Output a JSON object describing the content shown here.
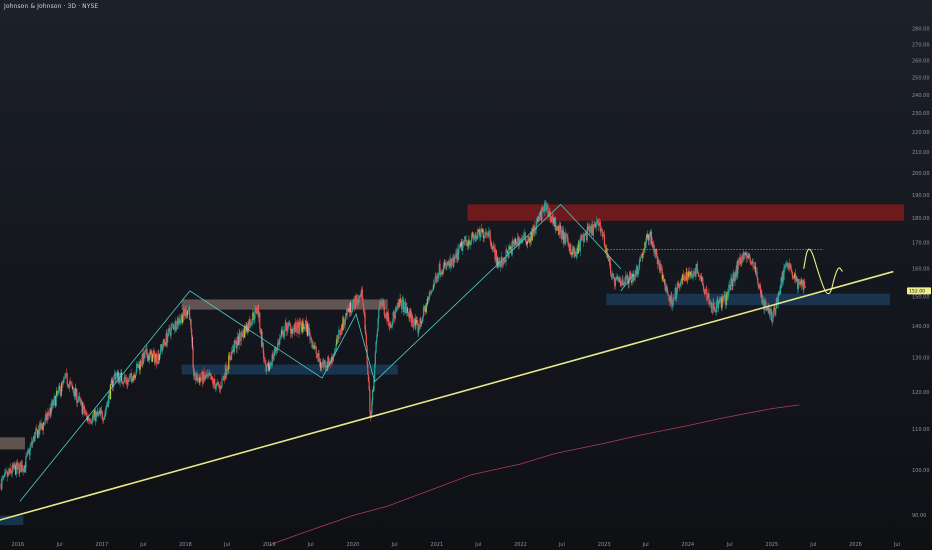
{
  "title": "Johnson & Johnson · 3D · NYSE",
  "chart_data": {
    "type": "candlestick",
    "symbol": "Johnson & Johnson",
    "interval": "3D",
    "exchange": "NYSE",
    "scale": "log",
    "ylim": [
      85,
      290
    ],
    "xlim": [
      "2015-10-15",
      "2026-08-05"
    ],
    "price_ticks": [
      90,
      100,
      110,
      120,
      130,
      140,
      150,
      160,
      170,
      180,
      190,
      200,
      210,
      220,
      230,
      240,
      250,
      260,
      270,
      280
    ],
    "time_ticks": [
      {
        "t": "2016-01-01",
        "label": "2016"
      },
      {
        "t": "2016-07-01",
        "label": "Jul"
      },
      {
        "t": "2017-01-01",
        "label": "2017"
      },
      {
        "t": "2017-07-01",
        "label": "Jul"
      },
      {
        "t": "2018-01-01",
        "label": "2018"
      },
      {
        "t": "2018-07-01",
        "label": "Jul"
      },
      {
        "t": "2019-01-01",
        "label": "2019"
      },
      {
        "t": "2019-07-01",
        "label": "Jul"
      },
      {
        "t": "2020-01-01",
        "label": "2020"
      },
      {
        "t": "2020-07-01",
        "label": "Jul"
      },
      {
        "t": "2021-01-01",
        "label": "2021"
      },
      {
        "t": "2021-07-01",
        "label": "Jul"
      },
      {
        "t": "2022-01-01",
        "label": "2022"
      },
      {
        "t": "2022-07-01",
        "label": "Jul"
      },
      {
        "t": "2023-01-01",
        "label": "2023"
      },
      {
        "t": "2023-07-01",
        "label": "Jul"
      },
      {
        "t": "2024-01-01",
        "label": "2024"
      },
      {
        "t": "2024-07-01",
        "label": "Jul"
      },
      {
        "t": "2025-01-01",
        "label": "2025"
      },
      {
        "t": "2025-07-01",
        "label": "Jul"
      },
      {
        "t": "2026-01-01",
        "label": "2026"
      },
      {
        "t": "2026-07-01",
        "label": "Jul"
      }
    ],
    "price_path": [
      [
        "2015-10-20",
        97
      ],
      [
        "2015-12-10",
        100
      ],
      [
        "2016-02-01",
        101
      ],
      [
        "2016-03-15",
        108
      ],
      [
        "2016-05-01",
        112
      ],
      [
        "2016-08-01",
        124
      ],
      [
        "2016-09-15",
        119
      ],
      [
        "2016-11-01",
        113
      ],
      [
        "2017-01-15",
        114
      ],
      [
        "2017-03-01",
        125
      ],
      [
        "2017-05-01",
        123
      ],
      [
        "2017-07-15",
        131
      ],
      [
        "2017-09-01",
        130
      ],
      [
        "2017-11-01",
        139
      ],
      [
        "2018-01-20",
        146
      ],
      [
        "2018-02-10",
        124
      ],
      [
        "2018-04-15",
        124
      ],
      [
        "2018-06-01",
        121
      ],
      [
        "2018-08-01",
        133
      ],
      [
        "2018-10-01",
        140
      ],
      [
        "2018-11-15",
        146
      ],
      [
        "2018-12-20",
        125
      ],
      [
        "2019-02-15",
        135
      ],
      [
        "2019-03-20",
        140
      ],
      [
        "2019-04-20",
        139
      ],
      [
        "2019-06-15",
        140
      ],
      [
        "2019-08-15",
        128
      ],
      [
        "2019-10-01",
        129
      ],
      [
        "2019-12-10",
        145
      ],
      [
        "2020-02-15",
        151
      ],
      [
        "2020-03-22",
        112
      ],
      [
        "2020-05-01",
        149
      ],
      [
        "2020-06-15",
        141
      ],
      [
        "2020-08-01",
        148
      ],
      [
        "2020-10-15",
        139
      ],
      [
        "2021-01-15",
        160
      ],
      [
        "2021-03-15",
        162
      ],
      [
        "2021-05-01",
        170
      ],
      [
        "2021-08-15",
        175
      ],
      [
        "2021-10-01",
        161
      ],
      [
        "2021-12-20",
        171
      ],
      [
        "2022-02-15",
        172
      ],
      [
        "2022-04-20",
        185
      ],
      [
        "2022-06-15",
        176
      ],
      [
        "2022-09-01",
        165
      ],
      [
        "2022-10-01",
        172
      ],
      [
        "2022-12-15",
        178
      ],
      [
        "2023-02-15",
        155
      ],
      [
        "2023-04-10",
        156
      ],
      [
        "2023-05-20",
        158
      ],
      [
        "2023-07-20",
        174
      ],
      [
        "2023-09-01",
        161
      ],
      [
        "2023-10-20",
        148
      ],
      [
        "2023-12-20",
        157
      ],
      [
        "2024-02-15",
        160
      ],
      [
        "2024-04-20",
        146
      ],
      [
        "2024-06-15",
        149
      ],
      [
        "2024-09-01",
        166
      ],
      [
        "2024-10-15",
        162
      ],
      [
        "2024-12-01",
        147
      ],
      [
        "2025-01-10",
        143
      ],
      [
        "2025-02-15",
        155
      ],
      [
        "2025-03-10",
        164
      ],
      [
        "2025-04-10",
        157
      ],
      [
        "2025-05-01",
        154
      ],
      [
        "2025-05-28",
        155
      ]
    ],
    "current_price": {
      "label": "152.00",
      "value": 152
    },
    "resistance_level": {
      "value": 167.5,
      "from": "2023-01-15",
      "to": "2025-08-15"
    },
    "zones": [
      {
        "name": "resistance-zone-2022",
        "color": "#b71c1c",
        "from": "2021-05-15",
        "to": "2026-08-01",
        "low": 179,
        "high": 186
      },
      {
        "name": "resistance-zone-2018",
        "color": "#a1887f",
        "from": "2017-12-15",
        "to": "2020-06-01",
        "low": 145.5,
        "high": 149
      },
      {
        "name": "support-zone-2018",
        "color": "#1f4e79",
        "from": "2017-12-15",
        "to": "2020-07-15",
        "low": 125,
        "high": 128
      },
      {
        "name": "support-zone-2023",
        "color": "#1f4e79",
        "from": "2023-01-10",
        "to": "2026-06-01",
        "low": 147,
        "high": 151
      },
      {
        "name": "resistance-zone-2015",
        "color": "#a1887f",
        "from": "2015-10-01",
        "to": "2016-02-01",
        "low": 105,
        "high": 108
      },
      {
        "name": "support-zone-2015",
        "color": "#1f4e79",
        "from": "2015-10-01",
        "to": "2016-01-25",
        "low": 88,
        "high": 90
      }
    ],
    "trendline": {
      "from": [
        "2015-10-10",
        89
      ],
      "to": [
        "2026-06-15",
        159
      ],
      "color": "#e8e88a"
    },
    "zigzag": [
      [
        "2016-01-10",
        93
      ],
      [
        "2018-01-20",
        152
      ],
      [
        "2019-08-20",
        124
      ],
      [
        "2020-01-15",
        144
      ],
      [
        "2020-04-05",
        123
      ],
      [
        "2022-06-25",
        186
      ],
      [
        "2023-03-15",
        160
      ]
    ],
    "zigzag_arrow": [
      [
        "2023-03-15",
        152
      ],
      [
        "2023-05-10",
        158
      ]
    ],
    "projection": [
      [
        "2025-05-20",
        160
      ],
      [
        "2025-06-05",
        168
      ],
      [
        "2025-06-25",
        167
      ],
      [
        "2025-07-25",
        158
      ],
      [
        "2025-08-25",
        151
      ],
      [
        "2025-09-15",
        151
      ],
      [
        "2025-10-01",
        157
      ],
      [
        "2025-10-20",
        161
      ],
      [
        "2025-11-05",
        159
      ]
    ],
    "moving_average": [
      [
        "2019-01-01",
        84
      ],
      [
        "2019-06-01",
        86.5
      ],
      [
        "2020-01-01",
        90
      ],
      [
        "2020-06-01",
        92
      ],
      [
        "2021-01-01",
        96
      ],
      [
        "2021-06-01",
        99
      ],
      [
        "2022-01-01",
        101.5
      ],
      [
        "2022-06-01",
        104
      ],
      [
        "2023-01-01",
        106.5
      ],
      [
        "2023-06-01",
        108.5
      ],
      [
        "2024-01-01",
        111
      ],
      [
        "2024-06-01",
        113
      ],
      [
        "2025-01-01",
        115.5
      ],
      [
        "2025-05-01",
        116.5
      ]
    ],
    "colors": {
      "up": "#26a69a",
      "down": "#ef5350",
      "up_alt": "#c0ca33",
      "down_alt": "#f48fb1",
      "zigzag": "#4dd0c4",
      "projection": "#f0f08a",
      "moving_average": "#b33a5b",
      "axis_text": "#8f939c",
      "price_tag": "#f0f08a"
    }
  }
}
